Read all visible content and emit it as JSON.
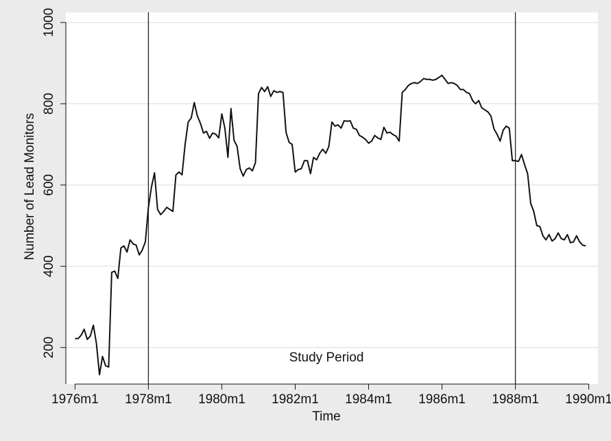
{
  "chart_data": {
    "type": "line",
    "xlabel": "Time",
    "ylabel": "Number of Lead Monitors",
    "annotations": [
      "Study Period"
    ],
    "x": [
      192,
      193,
      194,
      195,
      196,
      197,
      198,
      199,
      200,
      201,
      202,
      203,
      204,
      205,
      206,
      207,
      208,
      209,
      210,
      211,
      212,
      213,
      214,
      215,
      216,
      217,
      218,
      219,
      220,
      221,
      222,
      223,
      224,
      225,
      226,
      227,
      228,
      229,
      230,
      231,
      232,
      233,
      234,
      235,
      236,
      237,
      238,
      239,
      240,
      241,
      242,
      243,
      244,
      245,
      246,
      247,
      248,
      249,
      250,
      251,
      252,
      253,
      254,
      255,
      256,
      257,
      258,
      259,
      260,
      261,
      262,
      263,
      264,
      265,
      266,
      267,
      268,
      269,
      270,
      271,
      272,
      273,
      274,
      275,
      276,
      277,
      278,
      279,
      280,
      281,
      282,
      283,
      284,
      285,
      286,
      287,
      288,
      289,
      290,
      291,
      292,
      293,
      294,
      295,
      296,
      297,
      298,
      299,
      300,
      301,
      302,
      303,
      304,
      305,
      306,
      307,
      308,
      309,
      310,
      311,
      312,
      313,
      314,
      315,
      316,
      317,
      318,
      319,
      320,
      321,
      322,
      323,
      324,
      325,
      326,
      327,
      328,
      329,
      330,
      331,
      332,
      333,
      334,
      335,
      336,
      337,
      338,
      339,
      340,
      341,
      342,
      343,
      344,
      345,
      346,
      347,
      348,
      349,
      350,
      351,
      352,
      353,
      354,
      355,
      356,
      357,
      358,
      359
    ],
    "series": [
      {
        "color": "#111111",
        "values": [
          222,
          222,
          230,
          245,
          220,
          228,
          255,
          210,
          133,
          178,
          155,
          152,
          385,
          388,
          370,
          445,
          450,
          435,
          465,
          455,
          452,
          428,
          440,
          460,
          545,
          595,
          630,
          540,
          527,
          535,
          545,
          540,
          535,
          625,
          632,
          625,
          700,
          755,
          765,
          803,
          770,
          752,
          728,
          732,
          715,
          728,
          725,
          716,
          775,
          740,
          668,
          788,
          710,
          695,
          640,
          622,
          638,
          642,
          635,
          655,
          825,
          840,
          830,
          842,
          818,
          832,
          828,
          830,
          828,
          730,
          705,
          700,
          632,
          638,
          640,
          660,
          660,
          628,
          668,
          662,
          678,
          688,
          678,
          695,
          755,
          745,
          748,
          740,
          758,
          757,
          758,
          740,
          737,
          722,
          718,
          712,
          703,
          708,
          722,
          716,
          712,
          742,
          728,
          730,
          724,
          720,
          708,
          828,
          835,
          845,
          850,
          852,
          850,
          855,
          862,
          860,
          860,
          858,
          860,
          865,
          870,
          860,
          850,
          852,
          850,
          845,
          835,
          835,
          828,
          825,
          808,
          800,
          808,
          790,
          785,
          780,
          770,
          738,
          725,
          708,
          735,
          745,
          740,
          660,
          660,
          658,
          675,
          650,
          628,
          555,
          535,
          500,
          498,
          475,
          465,
          478,
          462,
          468,
          482,
          468,
          465,
          478,
          458,
          460,
          475,
          460,
          452,
          450
        ]
      }
    ],
    "vlines": [
      216,
      336
    ],
    "xlim": [
      189,
      363
    ],
    "ylim": [
      110,
      1025
    ],
    "xticks": [
      {
        "value": 192,
        "label": "1976m1"
      },
      {
        "value": 216,
        "label": "1978m1"
      },
      {
        "value": 240,
        "label": "1980m1"
      },
      {
        "value": 264,
        "label": "1982m1"
      },
      {
        "value": 288,
        "label": "1984m1"
      },
      {
        "value": 312,
        "label": "1986m1"
      },
      {
        "value": 336,
        "label": "1988m1"
      },
      {
        "value": 360,
        "label": "1990m1"
      }
    ],
    "yticks": [
      200,
      400,
      600,
      800,
      1000
    ],
    "grid": true
  }
}
